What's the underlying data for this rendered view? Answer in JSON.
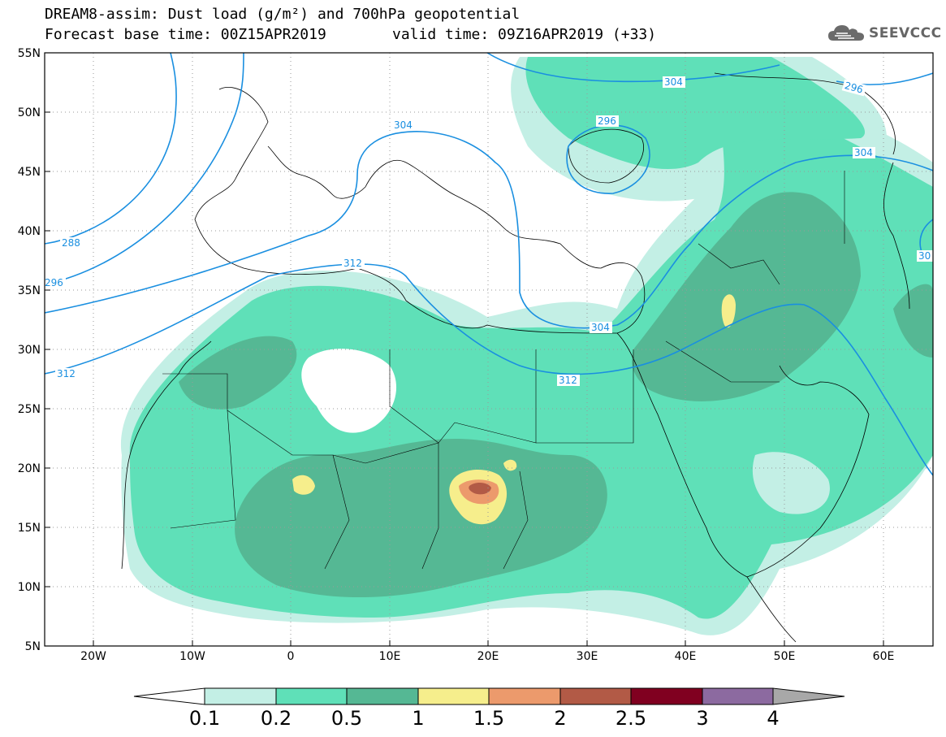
{
  "header": {
    "line1": "DREAM8-assim: Dust load (g/m²) and 700hPa geopotential",
    "line2": "Forecast base time: 00Z15APR2019",
    "valid": "valid time: 09Z16APR2019 (+33)"
  },
  "logo": {
    "text": "SEEVCCC",
    "icon": "cloud-icon"
  },
  "axes": {
    "lat_labels": [
      "55N",
      "50N",
      "45N",
      "40N",
      "35N",
      "30N",
      "25N",
      "20N",
      "15N",
      "10N",
      "5N"
    ],
    "lon_labels": [
      "20W",
      "10W",
      "0",
      "10E",
      "20E",
      "30E",
      "40E",
      "50E",
      "60E"
    ],
    "lat_range": [
      5,
      55
    ],
    "lon_range": [
      -25,
      65
    ],
    "grid": true
  },
  "contours": {
    "units": "700hPa geopotential",
    "labels": [
      "304",
      "296",
      "296",
      "304",
      "304",
      "288",
      "296",
      "312",
      "312",
      "304",
      "312",
      "30"
    ]
  },
  "colorbar": {
    "ticks": [
      "0.1",
      "0.2",
      "0.5",
      "1",
      "1.5",
      "2",
      "2.5",
      "3",
      "4"
    ],
    "colors": [
      "#c3efe5",
      "#5fe0b8",
      "#55b894",
      "#f6ee8c",
      "#ec9a6c",
      "#b25a46",
      "#800020",
      "#8c6aa0"
    ],
    "under_color": "#ffffff",
    "over_color": "#a8a8a8"
  }
}
